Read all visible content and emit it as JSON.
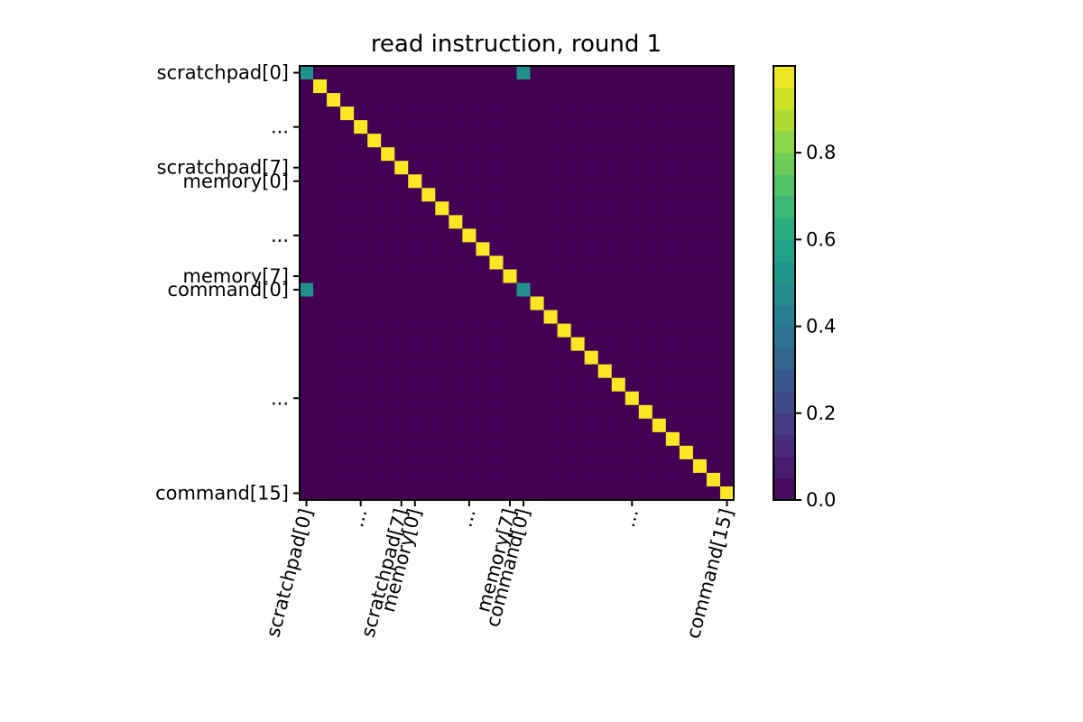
{
  "chart_data": {
    "type": "heatmap",
    "title": "read instruction, round 1",
    "size": 32,
    "default_value": 0,
    "diagonal_value": 1,
    "cells": [
      {
        "row": 0,
        "col": 0,
        "value": 0.5
      },
      {
        "row": 0,
        "col": 16,
        "value": 0.5
      },
      {
        "row": 16,
        "col": 0,
        "value": 0.5
      },
      {
        "row": 16,
        "col": 16,
        "value": 0.5
      }
    ],
    "y_ticks": [
      {
        "index": 0,
        "label": "scratchpad[0]"
      },
      {
        "index": 4,
        "label": "..."
      },
      {
        "index": 7,
        "label": "scratchpad[7]"
      },
      {
        "index": 8,
        "label": "memory[0]"
      },
      {
        "index": 12,
        "label": "..."
      },
      {
        "index": 15,
        "label": "memory[7]"
      },
      {
        "index": 16,
        "label": "command[0]"
      },
      {
        "index": 24,
        "label": "..."
      },
      {
        "index": 31,
        "label": "command[15]"
      }
    ],
    "x_ticks": [
      {
        "index": 0,
        "label": "scratchpad[0]"
      },
      {
        "index": 4,
        "label": "..."
      },
      {
        "index": 7,
        "label": "scratchpad[7]"
      },
      {
        "index": 8,
        "label": "memory[0]"
      },
      {
        "index": 12,
        "label": "..."
      },
      {
        "index": 15,
        "label": "memory[7]"
      },
      {
        "index": 16,
        "label": "command[0]"
      },
      {
        "index": 24,
        "label": "..."
      },
      {
        "index": 31,
        "label": "command[15]"
      }
    ],
    "x_tick_rotation": 75,
    "colormap": "viridis",
    "colorbar": {
      "range": [
        0.0,
        1.0
      ],
      "ticks": [
        {
          "value": 0.0,
          "label": "0.0"
        },
        {
          "value": 0.2,
          "label": "0.2"
        },
        {
          "value": 0.4,
          "label": "0.4"
        },
        {
          "value": 0.6,
          "label": "0.6"
        },
        {
          "value": 0.8,
          "label": "0.8"
        }
      ],
      "levels": 20
    }
  }
}
